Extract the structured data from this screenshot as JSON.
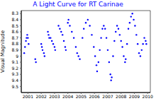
{
  "chart_data": {
    "type": "scatter",
    "title": "A Light Curve for RT Carinae",
    "y_label": "Visual Magnitude",
    "color": "#0000ff",
    "x": [
      2000.72,
      2000.78,
      2000.85,
      2000.9,
      2000.95,
      2001.0,
      2001.05,
      2001.55,
      2001.6,
      2002.0,
      2002.05,
      2002.1,
      2002.2,
      2002.25,
      2002.5,
      2002.55,
      2002.6,
      2002.7,
      2002.8,
      2002.9,
      2003.0,
      2003.05,
      2003.3,
      2003.4,
      2003.5,
      2003.6,
      2003.7,
      2003.8,
      2003.85,
      2004.0,
      2004.05,
      2004.15,
      2004.3,
      2004.45,
      2004.6,
      2004.7,
      2004.8,
      2004.9,
      2005.1,
      2005.2,
      2005.35,
      2005.5,
      2005.65,
      2005.8,
      2005.95,
      2006.05,
      2006.15,
      2006.2,
      2006.3,
      2006.4,
      2006.5,
      2006.6,
      2006.7,
      2006.8,
      2006.9,
      2007.0,
      2007.1,
      2007.2,
      2007.25,
      2007.3,
      2007.4,
      2007.5,
      2007.6,
      2007.7,
      2007.8,
      2007.9,
      2008.0,
      2008.1,
      2008.2,
      2008.3,
      2008.35,
      2008.45,
      2008.55,
      2008.65,
      2008.75,
      2008.85,
      2008.95,
      2009.05,
      2009.15,
      2009.25,
      2009.35,
      2009.45,
      2009.55,
      2009.65,
      2009.75,
      2009.85,
      2009.9
    ],
    "values": [
      8.95,
      8.85,
      8.75,
      8.7,
      8.65,
      8.7,
      8.8,
      9.05,
      9.1,
      8.8,
      8.85,
      8.9,
      8.95,
      9.0,
      8.6,
      8.65,
      8.7,
      8.7,
      8.75,
      8.8,
      8.85,
      8.9,
      8.5,
      8.55,
      8.6,
      8.65,
      8.75,
      8.85,
      8.9,
      8.45,
      8.4,
      8.5,
      8.6,
      8.7,
      8.85,
      8.95,
      9.0,
      9.05,
      8.7,
      8.55,
      8.45,
      8.4,
      8.5,
      8.65,
      8.85,
      9.0,
      9.15,
      9.25,
      9.1,
      8.9,
      8.7,
      8.55,
      8.5,
      8.55,
      8.7,
      8.9,
      9.1,
      9.3,
      9.4,
      9.35,
      9.0,
      8.75,
      8.6,
      8.5,
      8.55,
      8.65,
      8.75,
      8.85,
      9.0,
      9.1,
      9.05,
      8.8,
      8.55,
      8.45,
      8.35,
      8.3,
      8.4,
      8.5,
      8.65,
      8.8,
      8.95,
      9.0,
      8.9,
      8.8,
      8.7,
      8.75,
      8.8
    ],
    "xlim": [
      2000.5,
      2010.2
    ],
    "xticks": [
      2001,
      2002,
      2003,
      2004,
      2005,
      2006,
      2007,
      2008,
      2009,
      2010
    ],
    "ylim": [
      8.25,
      9.6
    ],
    "yticks": [
      8.3,
      8.4,
      8.5,
      8.6,
      8.7,
      8.8,
      8.9,
      9,
      9.1,
      9.2,
      9.3,
      9.4,
      9.5
    ]
  }
}
